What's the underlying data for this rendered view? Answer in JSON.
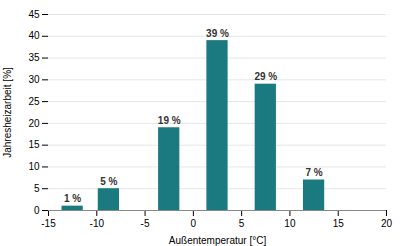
{
  "chart_data": {
    "type": "bar",
    "x": [
      -12.5,
      -8.75,
      -2.5,
      2.5,
      7.5,
      12.5
    ],
    "values": [
      1,
      5,
      19,
      39,
      29,
      7
    ],
    "value_labels": [
      "1 %",
      "5 %",
      "19 %",
      "39 %",
      "29 %",
      "7 %"
    ],
    "data_labels": true,
    "color": "#1a7a80",
    "xlim": [
      -15,
      20
    ],
    "xticks": [
      -15,
      -10,
      -5,
      0,
      5,
      10,
      15,
      20
    ],
    "ylim": [
      0,
      45
    ],
    "yticks": [
      0,
      5,
      10,
      15,
      20,
      25,
      30,
      35,
      40,
      45
    ],
    "xlabel": "Außentemperatur [°C]",
    "ylabel": "Jahresheizarbeit [%]",
    "grid": true
  }
}
